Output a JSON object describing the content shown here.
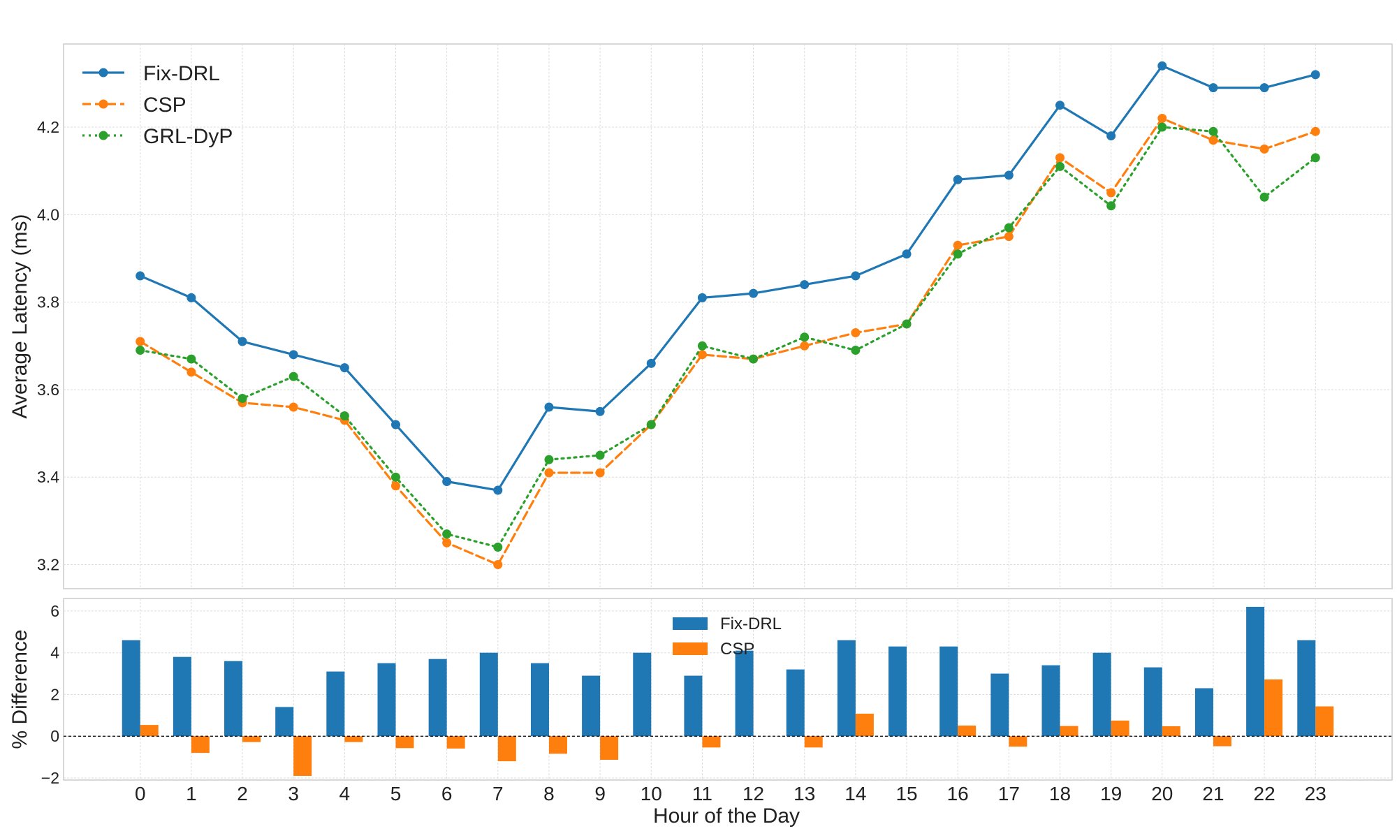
{
  "chart_data": [
    {
      "type": "line",
      "xlabel": "",
      "ylabel": "Average Latency (ms)",
      "ylim": [
        3.145,
        4.39
      ],
      "yticks": [
        "3.2",
        "3.4",
        "3.6",
        "3.8",
        "4.0",
        "4.2"
      ],
      "xlim": [
        -1.5,
        24.5
      ],
      "x": [
        0,
        1,
        2,
        3,
        4,
        5,
        6,
        7,
        8,
        9,
        10,
        11,
        12,
        13,
        14,
        15,
        16,
        17,
        18,
        19,
        20,
        21,
        22,
        23
      ],
      "grid": true,
      "legend_position": "top-left",
      "series": [
        {
          "name": "Fix-DRL",
          "color": "#1f77b4",
          "style": "solid",
          "values": [
            3.86,
            3.81,
            3.71,
            3.68,
            3.65,
            3.52,
            3.39,
            3.37,
            3.56,
            3.55,
            3.66,
            3.81,
            3.82,
            3.84,
            3.86,
            3.91,
            4.08,
            4.09,
            4.25,
            4.18,
            4.34,
            4.29,
            4.29,
            4.32
          ]
        },
        {
          "name": "CSP",
          "color": "#ff7f0e",
          "style": "dashed",
          "values": [
            3.71,
            3.64,
            3.57,
            3.56,
            3.53,
            3.38,
            3.25,
            3.2,
            3.41,
            3.41,
            3.52,
            3.68,
            3.67,
            3.7,
            3.73,
            3.75,
            3.93,
            3.95,
            4.13,
            4.05,
            4.22,
            4.17,
            4.15,
            4.19
          ]
        },
        {
          "name": "GRL-DyP",
          "color": "#2ca02c",
          "style": "dotted",
          "values": [
            3.69,
            3.67,
            3.58,
            3.63,
            3.54,
            3.4,
            3.27,
            3.24,
            3.44,
            3.45,
            3.52,
            3.7,
            3.67,
            3.72,
            3.69,
            3.75,
            3.91,
            3.97,
            4.11,
            4.02,
            4.2,
            4.19,
            4.04,
            4.13
          ]
        }
      ]
    },
    {
      "type": "bar",
      "xlabel": "Hour of the Day",
      "ylabel": "% Difference",
      "ylim": [
        -2.1,
        6.6
      ],
      "yticks": [
        "−2",
        "0",
        "2",
        "4",
        "6"
      ],
      "xlim": [
        -1.5,
        24.5
      ],
      "categories": [
        "0",
        "1",
        "2",
        "3",
        "4",
        "5",
        "6",
        "7",
        "8",
        "9",
        "10",
        "11",
        "12",
        "13",
        "14",
        "15",
        "16",
        "17",
        "18",
        "19",
        "20",
        "21",
        "22",
        "23"
      ],
      "grid": true,
      "legend_position": "top-center",
      "series": [
        {
          "name": "Fix-DRL",
          "color": "#1f77b4",
          "values": [
            4.6,
            3.8,
            3.6,
            1.4,
            3.1,
            3.5,
            3.7,
            4.0,
            3.5,
            2.9,
            4.0,
            2.9,
            4.1,
            3.2,
            4.6,
            4.3,
            4.3,
            3.0,
            3.4,
            4.0,
            3.3,
            2.3,
            6.2,
            4.6
          ]
        },
        {
          "name": "CSP",
          "color": "#ff7f0e",
          "values": [
            0.54,
            -0.8,
            -0.28,
            -1.9,
            -0.28,
            -0.57,
            -0.59,
            -1.2,
            -0.84,
            -1.13,
            0.0,
            -0.54,
            0.0,
            -0.54,
            1.08,
            0.0,
            0.51,
            -0.5,
            0.49,
            0.75,
            0.48,
            -0.48,
            2.72,
            1.43
          ]
        }
      ]
    }
  ]
}
